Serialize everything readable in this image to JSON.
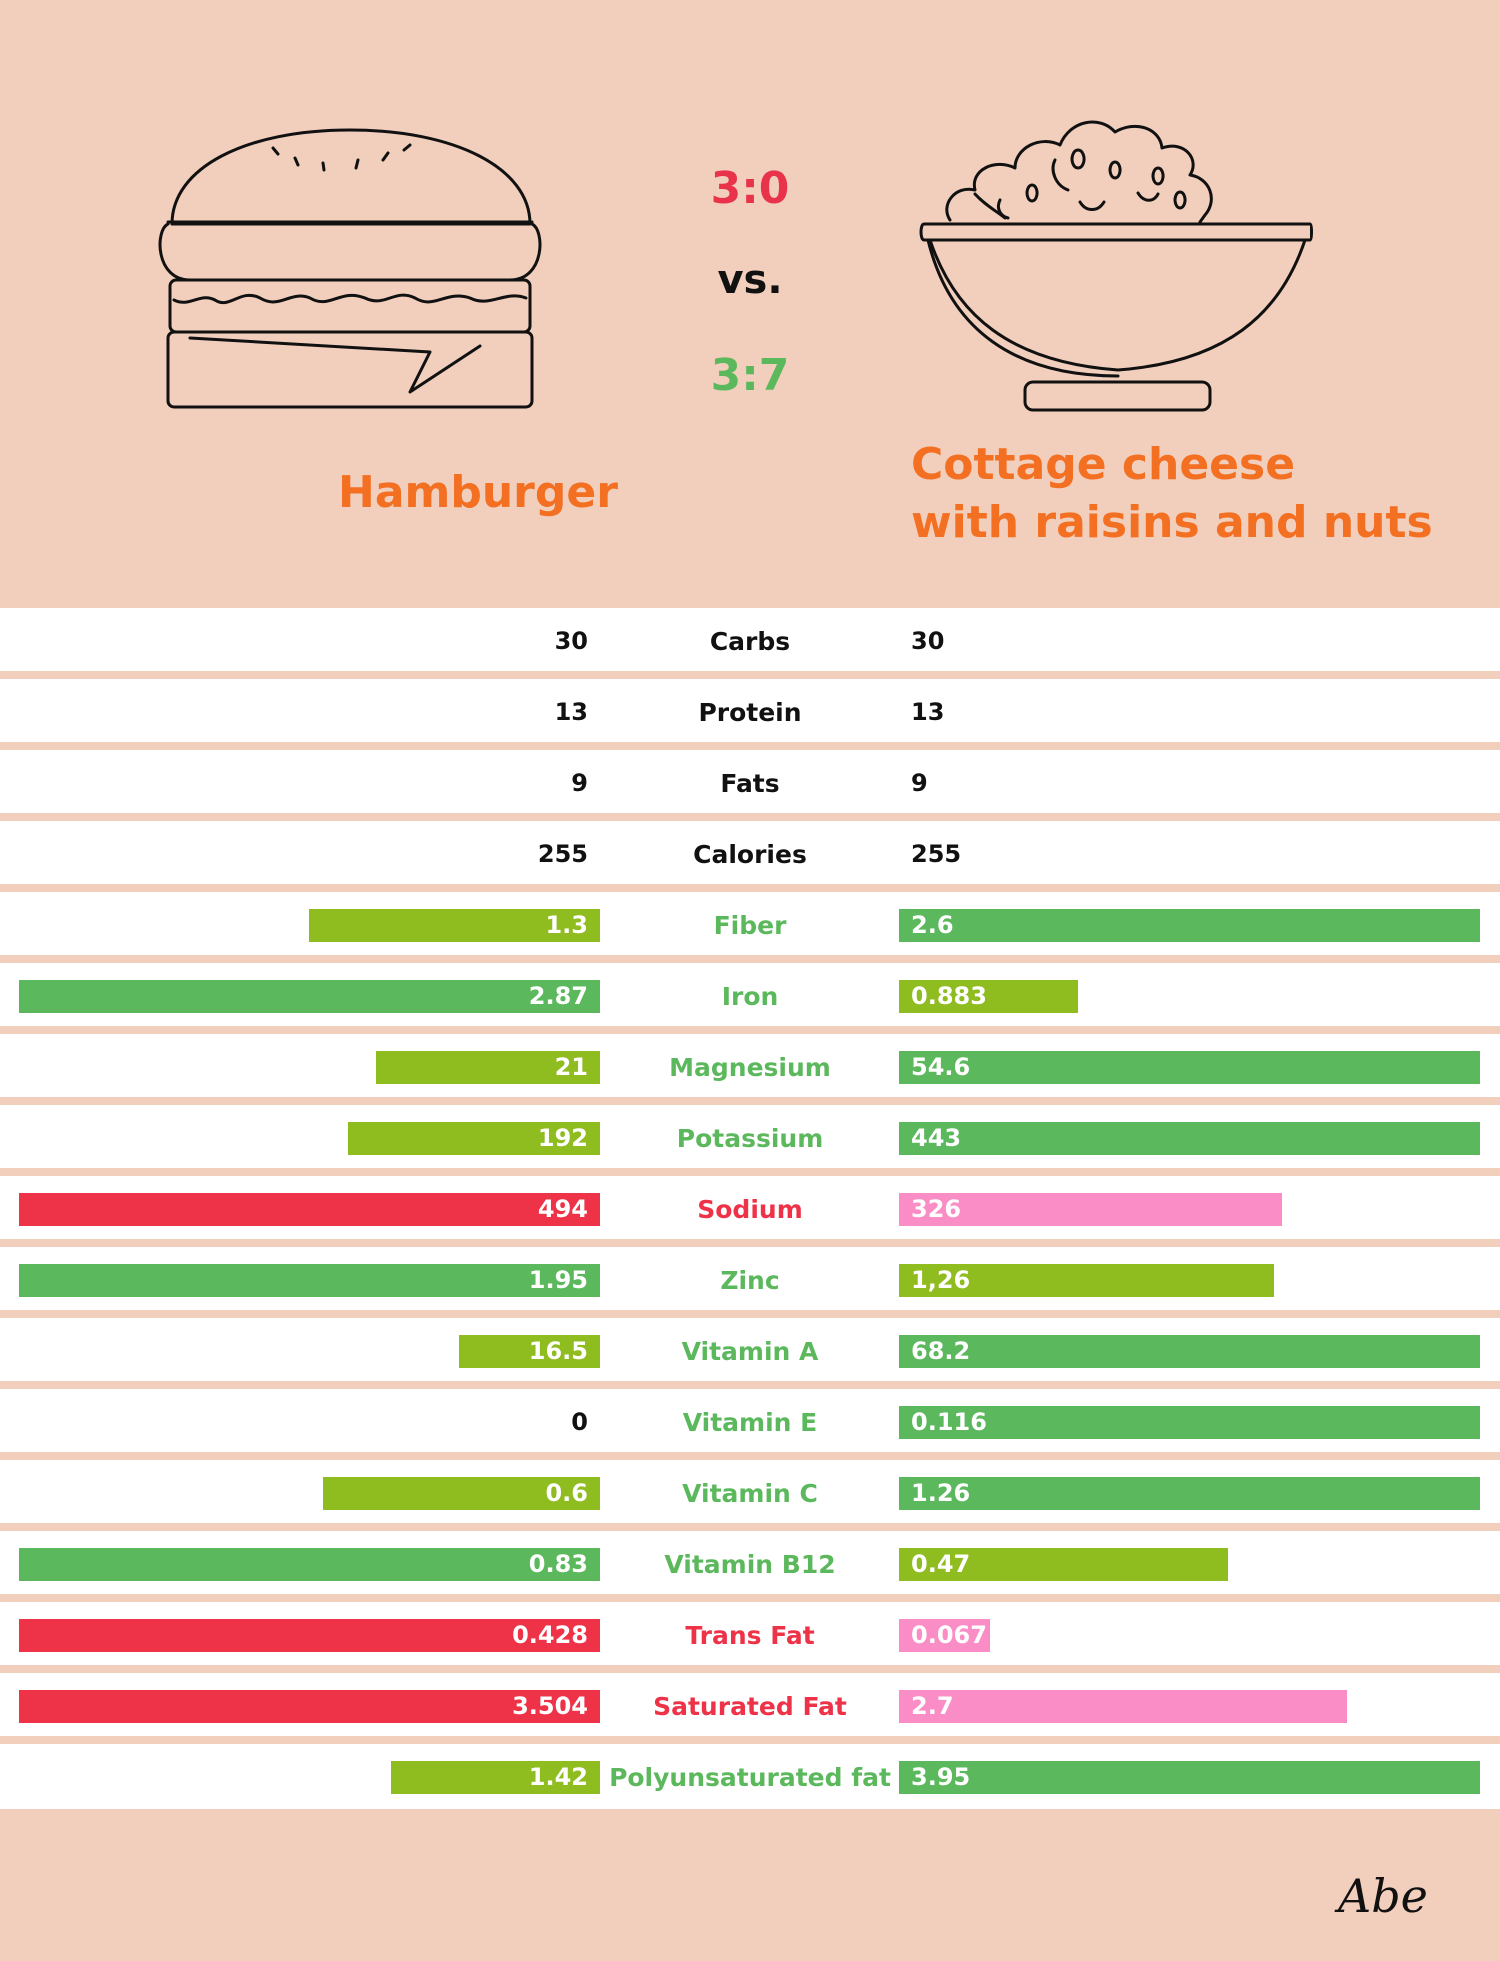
{
  "colors": {
    "background": "#f2cfbd",
    "title_orange": "#f36f21",
    "score_red": "#e8334a",
    "score_green": "#5cb85c",
    "better": "#5cb85c",
    "moderate": "#8fbc1f",
    "bad": "#ee3348",
    "bad_light": "#fb8dc6",
    "label_black": "#111111"
  },
  "header": {
    "score_top": "3:0",
    "vs": "vs.",
    "score_bottom": "3:7",
    "left_food": "Hamburger",
    "right_food_line1": "Cottage cheese",
    "right_food_line2": "with raisins and nuts",
    "left_icon": "hamburger-icon",
    "right_icon": "bowl-of-cottage-cheese-icon"
  },
  "logo": {
    "text": "Abe",
    "icon": "abe-logo"
  },
  "chart_data": {
    "type": "table",
    "series": [
      {
        "name": "Hamburger"
      },
      {
        "name": "Cottage cheese with raisins and nuts"
      }
    ],
    "rows": [
      {
        "label": "Carbs",
        "left": "30",
        "right": "30",
        "left_level": 0,
        "right_level": 0,
        "label_color": "#111111"
      },
      {
        "label": "Protein",
        "left": "13",
        "right": "13",
        "left_level": 0,
        "right_level": 0,
        "label_color": "#111111"
      },
      {
        "label": "Fats",
        "left": "9",
        "right": "9",
        "left_level": 0,
        "right_level": 0,
        "label_color": "#111111"
      },
      {
        "label": "Calories",
        "left": "255",
        "right": "255",
        "left_level": 0,
        "right_level": 0,
        "label_color": "#111111"
      },
      {
        "label": "Fiber",
        "left": "1.3",
        "right": "2.6",
        "left_level": 0.5,
        "right_level": 1.0,
        "left_color": "#8fbc1f",
        "right_color": "#5cb85c",
        "label_color": "#5cb85c"
      },
      {
        "label": "Iron",
        "left": "2.87",
        "right": "0.883",
        "left_level": 1.0,
        "right_level": 0.308,
        "left_color": "#5cb85c",
        "right_color": "#8fbc1f",
        "label_color": "#5cb85c"
      },
      {
        "label": "Magnesium",
        "left": "21",
        "right": "54.6",
        "left_level": 0.385,
        "right_level": 1.0,
        "left_color": "#8fbc1f",
        "right_color": "#5cb85c",
        "label_color": "#5cb85c"
      },
      {
        "label": "Potassium",
        "left": "192",
        "right": "443",
        "left_level": 0.433,
        "right_level": 1.0,
        "left_color": "#8fbc1f",
        "right_color": "#5cb85c",
        "label_color": "#5cb85c"
      },
      {
        "label": "Sodium",
        "left": "494",
        "right": "326",
        "left_level": 1.0,
        "right_level": 0.66,
        "left_color": "#ee3348",
        "right_color": "#fb8dc6",
        "label_color": "#ee3348"
      },
      {
        "label": "Zinc",
        "left": "1.95",
        "right": "1,26",
        "left_level": 1.0,
        "right_level": 0.646,
        "left_color": "#5cb85c",
        "right_color": "#8fbc1f",
        "label_color": "#5cb85c"
      },
      {
        "label": "Vitamin A",
        "left": "16.5",
        "right": "68.2",
        "left_level": 0.242,
        "right_level": 1.0,
        "left_color": "#8fbc1f",
        "right_color": "#5cb85c",
        "label_color": "#5cb85c"
      },
      {
        "label": "Vitamin E",
        "left": "0",
        "right": "0.116",
        "left_level": 0,
        "right_level": 1.0,
        "right_color": "#5cb85c",
        "label_color": "#5cb85c"
      },
      {
        "label": "Vitamin C",
        "left": "0.6",
        "right": "1.26",
        "left_level": 0.476,
        "right_level": 1.0,
        "left_color": "#8fbc1f",
        "right_color": "#5cb85c",
        "label_color": "#5cb85c"
      },
      {
        "label": "Vitamin B12",
        "left": "0.83",
        "right": "0.47",
        "left_level": 1.0,
        "right_level": 0.566,
        "left_color": "#5cb85c",
        "right_color": "#8fbc1f",
        "label_color": "#5cb85c"
      },
      {
        "label": "Trans Fat",
        "left": "0.428",
        "right": "0.067",
        "left_level": 1.0,
        "right_level": 0.157,
        "left_color": "#ee3348",
        "right_color": "#fb8dc6",
        "label_color": "#ee3348"
      },
      {
        "label": "Saturated Fat",
        "left": "3.504",
        "right": "2.7",
        "left_level": 1.0,
        "right_level": 0.771,
        "left_color": "#ee3348",
        "right_color": "#fb8dc6",
        "label_color": "#ee3348"
      },
      {
        "label": "Polyunsaturated fat",
        "left": "1.42",
        "right": "3.95",
        "left_level": 0.359,
        "right_level": 1.0,
        "left_color": "#8fbc1f",
        "right_color": "#5cb85c",
        "label_color": "#5cb85c"
      }
    ]
  }
}
